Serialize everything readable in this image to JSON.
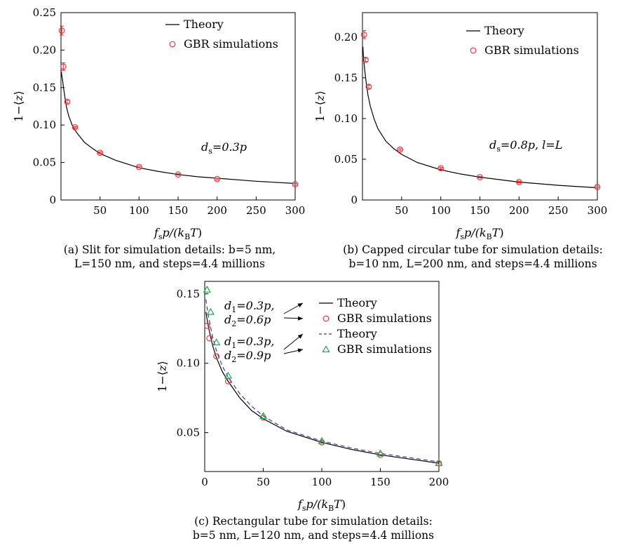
{
  "chart_data": [
    {
      "id": "a",
      "type": "line",
      "xlabel": {
        "f": "f",
        "s": "s",
        "mid": "p/(k",
        "B": "B",
        "T": "T",
        "end": ")"
      },
      "ylabel": {
        "pre": "1−⟨",
        "var": "z",
        "post": "⟩"
      },
      "xlim": [
        0,
        300
      ],
      "ylim": [
        0,
        0.25
      ],
      "xticks": [
        "50",
        "100",
        "150",
        "200",
        "250",
        "300"
      ],
      "yticks": [
        "0",
        "0.05",
        "0.10",
        "0.15",
        "0.20",
        "0.25"
      ],
      "legend": [
        {
          "label": "Theory",
          "style": "solid"
        },
        {
          "label": "GBR simulations",
          "style": "circle"
        }
      ],
      "annotation": {
        "sym": "d",
        "sub": "s",
        "rest": "=0.3p"
      },
      "series": [
        {
          "name": "Theory",
          "kind": "line",
          "color": "#000000",
          "x": [
            0.5,
            1,
            2,
            3,
            5,
            7,
            10,
            15,
            20,
            30,
            40,
            50,
            70,
            100,
            125,
            150,
            175,
            200,
            250,
            300
          ],
          "y": [
            0.171,
            0.166,
            0.16,
            0.152,
            0.137,
            0.124,
            0.112,
            0.098,
            0.09,
            0.077,
            0.069,
            0.062,
            0.053,
            0.043,
            0.038,
            0.034,
            0.031,
            0.029,
            0.025,
            0.022
          ]
        },
        {
          "name": "GBR simulations",
          "kind": "marker",
          "marker": "circle",
          "color": "#e8363b",
          "x": [
            1,
            3,
            8,
            18,
            50,
            100,
            150,
            200,
            300
          ],
          "y": [
            0.226,
            0.178,
            0.131,
            0.097,
            0.063,
            0.044,
            0.034,
            0.028,
            0.021
          ],
          "err": [
            0.006,
            0.005,
            0.002,
            0.001,
            0.001,
            0.001,
            0.001,
            0.001,
            0.001
          ]
        }
      ],
      "caption": [
        "(a) Slit for simulation details: b=5 nm,",
        "L=150 nm, and steps=4.4 millions"
      ]
    },
    {
      "id": "b",
      "type": "line",
      "xlabel": {
        "f": "f",
        "s": "s",
        "mid": "p/(k",
        "B": "B",
        "T": "T",
        "end": ")"
      },
      "ylabel": {
        "pre": "1−⟨",
        "var": "z",
        "post": "⟩"
      },
      "xlim": [
        0,
        300
      ],
      "ylim": [
        0,
        0.23
      ],
      "xticks": [
        "50",
        "100",
        "150",
        "200",
        "250",
        "300"
      ],
      "yticks": [
        "0",
        "0.05",
        "0.10",
        "0.15",
        "0.20"
      ],
      "legend": [
        {
          "label": "Theory",
          "style": "solid"
        },
        {
          "label": "GBR simulations",
          "style": "circle"
        }
      ],
      "annotation": {
        "sym": "d",
        "sub": "s",
        "rest": "=0.8p, l=L"
      },
      "series": [
        {
          "name": "Theory",
          "kind": "line",
          "color": "#000000",
          "x": [
            0.5,
            1,
            2,
            3,
            5,
            7,
            10,
            15,
            20,
            30,
            40,
            50,
            70,
            100,
            125,
            150,
            175,
            200,
            250,
            300
          ],
          "y": [
            0.188,
            0.18,
            0.168,
            0.158,
            0.142,
            0.129,
            0.115,
            0.099,
            0.087,
            0.072,
            0.063,
            0.056,
            0.046,
            0.037,
            0.032,
            0.028,
            0.025,
            0.022,
            0.018,
            0.015
          ]
        },
        {
          "name": "GBR simulations",
          "kind": "marker",
          "marker": "circle",
          "color": "#e8363b",
          "x": [
            2,
            4,
            8,
            48,
            100,
            150,
            200,
            300
          ],
          "y": [
            0.203,
            0.172,
            0.139,
            0.062,
            0.039,
            0.028,
            0.022,
            0.016
          ],
          "err": [
            0.005,
            0.002,
            0.002,
            0.001,
            0.001,
            0.001,
            0.001,
            0.001
          ]
        }
      ],
      "caption": [
        "(b) Capped circular tube for simulation details:",
        "b=10 nm, L=200 nm, and steps=4.4 millions"
      ]
    },
    {
      "id": "c",
      "type": "line",
      "xlabel": {
        "f": "f",
        "s": "s",
        "mid": "p/(k",
        "B": "B",
        "T": "T",
        "end": ")"
      },
      "ylabel": {
        "pre": "1−⟨",
        "var": "z",
        "post": "⟩"
      },
      "xlim": [
        0,
        200
      ],
      "ylim": [
        0.022,
        0.159
      ],
      "xticks": [
        "0",
        "50",
        "100",
        "150",
        "200"
      ],
      "yticks": [
        "0.05",
        "0.10",
        "0.15"
      ],
      "legend": [
        {
          "label": "Theory",
          "style": "solid"
        },
        {
          "label": "GBR simulations",
          "style": "circle"
        },
        {
          "label": "Theory",
          "style": "dashed"
        },
        {
          "label": "GBR simulations",
          "style": "triangle"
        }
      ],
      "annotations": [
        {
          "a_sub": "1",
          "a_rest": "=0.3p,",
          "b_sub": "2",
          "b_rest": "=0.6p"
        },
        {
          "a_sub": "1",
          "a_rest": "=0.3p,",
          "b_sub": "2",
          "b_rest": "=0.9p"
        }
      ],
      "series": [
        {
          "name": "Theory",
          "kind": "line",
          "color": "#000000",
          "x": [
            1,
            2,
            3,
            5,
            7,
            10,
            15,
            20,
            30,
            40,
            50,
            70,
            100,
            125,
            150,
            175,
            200
          ],
          "y": [
            0.137,
            0.132,
            0.127,
            0.119,
            0.112,
            0.104,
            0.094,
            0.087,
            0.075,
            0.066,
            0.06,
            0.051,
            0.043,
            0.038,
            0.034,
            0.031,
            0.028
          ]
        },
        {
          "name": "GBR simulations",
          "kind": "marker",
          "marker": "circle",
          "color": "#e8363b",
          "x": [
            2,
            4,
            10,
            20,
            50,
            100,
            150,
            200
          ],
          "y": [
            0.127,
            0.118,
            0.105,
            0.087,
            0.061,
            0.043,
            0.034,
            0.028
          ]
        },
        {
          "name": "Theory",
          "kind": "line",
          "dash": "6,4",
          "color": "#3c3c8c",
          "x": [
            1,
            2,
            3,
            5,
            7,
            10,
            15,
            20,
            30,
            40,
            50,
            70,
            100,
            125,
            150,
            175,
            200
          ],
          "y": [
            0.146,
            0.14,
            0.135,
            0.126,
            0.118,
            0.109,
            0.098,
            0.09,
            0.078,
            0.069,
            0.062,
            0.052,
            0.044,
            0.039,
            0.035,
            0.032,
            0.029
          ]
        },
        {
          "name": "GBR simulations",
          "kind": "marker",
          "marker": "triangle",
          "color": "#1fa84c",
          "x": [
            2,
            5,
            10,
            20,
            50,
            100,
            150,
            200
          ],
          "y": [
            0.153,
            0.137,
            0.115,
            0.091,
            0.062,
            0.044,
            0.035,
            0.028
          ]
        }
      ],
      "caption": [
        "(c) Rectangular tube for simulation details:",
        "b=5 nm, L=120 nm, and steps=4.4 millions"
      ]
    }
  ]
}
